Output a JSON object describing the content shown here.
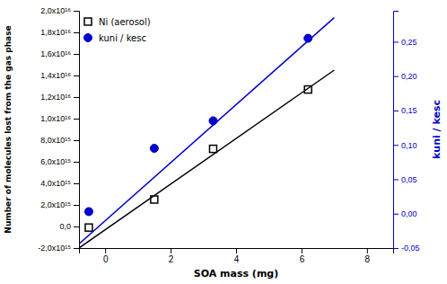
{
  "chart_data": {
    "type": "scatter",
    "x_label": "SOA mass (mg)",
    "y_label": "Number of molecules lost from the gas phase",
    "y2_label": "kuni / kesc",
    "xlim": [
      -0.8,
      8.8
    ],
    "xticks": [
      0,
      2,
      4,
      6,
      8
    ],
    "ylim": [
      -2000000000000000.0,
      2e+16
    ],
    "yticks": [
      {
        "value": -2000000000000000.0,
        "label": "-2,0x10¹⁵"
      },
      {
        "value": 0.0,
        "label": "0,0"
      },
      {
        "value": 2000000000000000.0,
        "label": "2,0x10¹⁵"
      },
      {
        "value": 4000000000000000.0,
        "label": "4,0x10¹⁵"
      },
      {
        "value": 6000000000000000.0,
        "label": "6,0x10¹⁵"
      },
      {
        "value": 8000000000000000.0,
        "label": "8,0x10¹⁵"
      },
      {
        "value": 1e+16,
        "label": "1,0x10¹⁶"
      },
      {
        "value": 1.2e+16,
        "label": "1,2x10¹⁶"
      },
      {
        "value": 1.4e+16,
        "label": "1,4x10¹⁶"
      },
      {
        "value": 1.6e+16,
        "label": "1,6x10¹⁶"
      },
      {
        "value": 1.8e+16,
        "label": "1,8x10¹⁶"
      },
      {
        "value": 2e+16,
        "label": "2,0x10¹⁶"
      }
    ],
    "y2lim": [
      -0.05,
      0.295
    ],
    "y2ticks": [
      {
        "value": -0.05,
        "label": "-0,05"
      },
      {
        "value": 0.0,
        "label": "0,00"
      },
      {
        "value": 0.05,
        "label": "0,05"
      },
      {
        "value": 0.1,
        "label": "0,10"
      },
      {
        "value": 0.15,
        "label": "0,15"
      },
      {
        "value": 0.2,
        "label": "0,20"
      },
      {
        "value": 0.25,
        "label": "0,25"
      }
    ],
    "grid": false,
    "legend": "upper left",
    "series": [
      {
        "type": "line",
        "color": "#000000",
        "x": [
          -0.8,
          7.0
        ],
        "values": [
          -2000000000000000.0,
          1.45e+16
        ]
      },
      {
        "name": "Ni (aerosol)",
        "type": "scatter",
        "marker": "square",
        "color": "#000000",
        "x": [
          -0.5,
          1.5,
          3.3,
          6.2
        ],
        "values": [
          -100000000000000.0,
          2500000000000000.0,
          7200000000000000.0,
          1.27e+16
        ]
      },
      {
        "type": "line",
        "color": "#0000cc",
        "axis": "y2",
        "x": [
          -0.8,
          7.0
        ],
        "values": [
          -0.044,
          0.285
        ]
      },
      {
        "name": "kuni / kesc",
        "type": "scatter",
        "marker": "circle",
        "color": "#0000cc",
        "axis": "y2",
        "x": [
          -0.5,
          1.5,
          3.3,
          6.2
        ],
        "values": [
          0.003,
          0.095,
          0.135,
          0.255
        ]
      }
    ]
  }
}
